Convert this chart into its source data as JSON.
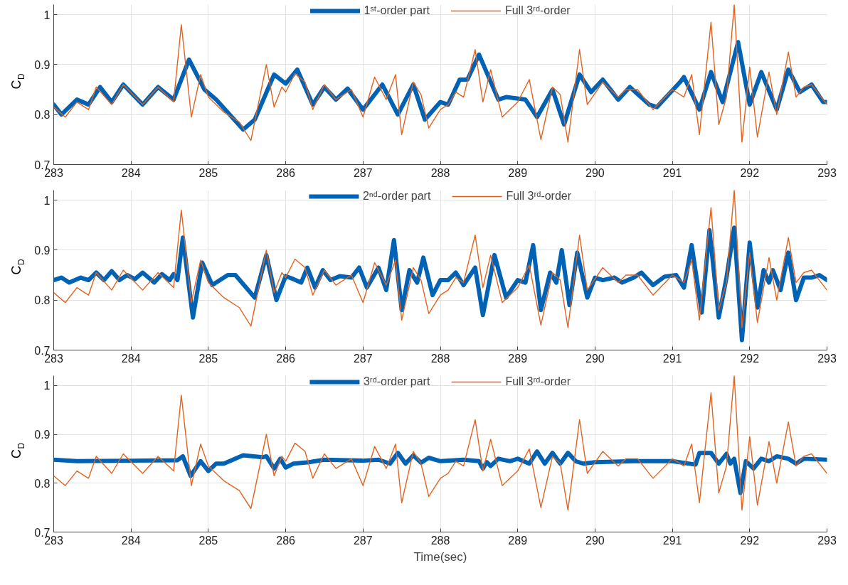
{
  "chart_data": [
    {
      "type": "line",
      "ylabel": "C$_{D}$",
      "xlim": [
        283,
        293
      ],
      "ylim": [
        0.7,
        1.02
      ],
      "xticks": [
        283,
        284,
        285,
        286,
        287,
        288,
        289,
        290,
        291,
        292,
        293
      ],
      "yticks": [
        0.7,
        0.8,
        0.9,
        1
      ],
      "grid": true,
      "legend": "top",
      "series": [
        {
          "name": "1ˢᵗ-order part",
          "color": "#0062b4",
          "x": [
            283.0,
            283.1,
            283.3,
            283.45,
            283.6,
            283.75,
            283.9,
            284.15,
            284.35,
            284.55,
            284.75,
            284.95,
            285.1,
            285.45,
            285.6,
            285.85,
            286.0,
            286.15,
            286.35,
            286.5,
            286.65,
            286.8,
            287.0,
            287.25,
            287.45,
            287.65,
            287.8,
            288.0,
            288.1,
            288.25,
            288.35,
            288.5,
            288.75,
            288.85,
            289.1,
            289.25,
            289.45,
            289.6,
            289.8,
            289.95,
            290.1,
            290.3,
            290.45,
            290.7,
            290.8,
            291.1,
            291.15,
            291.35,
            291.5,
            291.65,
            291.85,
            292.0,
            292.15,
            292.35,
            292.5,
            292.65,
            292.8,
            292.95,
            293.0
          ],
          "values": [
            0.82,
            0.8,
            0.83,
            0.82,
            0.855,
            0.825,
            0.86,
            0.82,
            0.855,
            0.83,
            0.91,
            0.85,
            0.83,
            0.77,
            0.79,
            0.88,
            0.862,
            0.89,
            0.82,
            0.855,
            0.83,
            0.852,
            0.81,
            0.86,
            0.8,
            0.86,
            0.79,
            0.825,
            0.82,
            0.87,
            0.87,
            0.92,
            0.83,
            0.835,
            0.83,
            0.795,
            0.85,
            0.78,
            0.88,
            0.845,
            0.87,
            0.83,
            0.855,
            0.82,
            0.815,
            0.865,
            0.875,
            0.81,
            0.885,
            0.825,
            0.945,
            0.82,
            0.885,
            0.81,
            0.89,
            0.845,
            0.86,
            0.825,
            0.825
          ]
        },
        {
          "name": "Full 3ʳᵈ-order",
          "color": "#e2621f",
          "x": [
            283.0,
            283.15,
            283.3,
            283.45,
            283.55,
            283.75,
            283.9,
            284.15,
            284.35,
            284.55,
            284.65,
            284.78,
            284.9,
            285.0,
            285.2,
            285.4,
            285.55,
            285.75,
            285.85,
            285.95,
            286.0,
            286.12,
            286.25,
            286.35,
            286.5,
            286.65,
            286.85,
            287.0,
            287.15,
            287.3,
            287.42,
            287.5,
            287.65,
            287.75,
            287.85,
            288.0,
            288.1,
            288.2,
            288.3,
            288.45,
            288.55,
            288.65,
            288.8,
            289.0,
            289.15,
            289.3,
            289.45,
            289.55,
            289.65,
            289.8,
            289.9,
            290.1,
            290.3,
            290.4,
            290.55,
            290.75,
            291.0,
            291.15,
            291.25,
            291.35,
            291.5,
            291.6,
            291.7,
            291.8,
            291.9,
            292.0,
            292.1,
            292.25,
            292.35,
            292.5,
            292.6,
            292.7,
            292.8,
            292.9,
            293.0
          ],
          "values": [
            0.815,
            0.795,
            0.825,
            0.81,
            0.855,
            0.82,
            0.86,
            0.82,
            0.855,
            0.825,
            0.98,
            0.795,
            0.88,
            0.835,
            0.805,
            0.785,
            0.748,
            0.9,
            0.815,
            0.855,
            0.845,
            0.882,
            0.865,
            0.81,
            0.86,
            0.83,
            0.85,
            0.795,
            0.875,
            0.83,
            0.88,
            0.76,
            0.865,
            0.84,
            0.773,
            0.81,
            0.82,
            0.845,
            0.835,
            0.93,
            0.825,
            0.89,
            0.795,
            0.825,
            0.87,
            0.75,
            0.855,
            0.84,
            0.745,
            0.93,
            0.82,
            0.865,
            0.835,
            0.85,
            0.85,
            0.81,
            0.85,
            0.835,
            0.88,
            0.76,
            0.985,
            0.78,
            0.835,
            1.02,
            0.745,
            0.895,
            0.755,
            0.885,
            0.8,
            0.925,
            0.835,
            0.855,
            0.86,
            0.84,
            0.82
          ]
        }
      ]
    },
    {
      "type": "line",
      "ylabel": "C$_{D}$",
      "xlim": [
        283,
        293
      ],
      "ylim": [
        0.7,
        1.02
      ],
      "xticks": [
        283,
        284,
        285,
        286,
        287,
        288,
        289,
        290,
        291,
        292,
        293
      ],
      "yticks": [
        0.7,
        0.8,
        0.9,
        1
      ],
      "grid": true,
      "legend": "top",
      "series": [
        {
          "name": "2ⁿᵈ-order part",
          "color": "#0062b4",
          "x": [
            283.0,
            283.1,
            283.2,
            283.35,
            283.45,
            283.55,
            283.65,
            283.75,
            283.85,
            283.95,
            284.05,
            284.15,
            284.3,
            284.4,
            284.5,
            284.55,
            284.6,
            284.67,
            284.8,
            284.92,
            285.05,
            285.25,
            285.35,
            285.6,
            285.75,
            285.88,
            286.0,
            286.1,
            286.2,
            286.28,
            286.38,
            286.48,
            286.58,
            286.7,
            286.85,
            286.95,
            287.05,
            287.2,
            287.3,
            287.4,
            287.5,
            287.6,
            287.7,
            287.78,
            287.9,
            288.0,
            288.1,
            288.2,
            288.3,
            288.45,
            288.55,
            288.7,
            288.85,
            289.0,
            289.1,
            289.2,
            289.3,
            289.42,
            289.5,
            289.57,
            289.67,
            289.77,
            289.9,
            290.0,
            290.1,
            290.25,
            290.35,
            290.5,
            290.6,
            290.75,
            290.9,
            291.05,
            291.15,
            291.25,
            291.38,
            291.48,
            291.6,
            291.7,
            291.8,
            291.9,
            292.0,
            292.1,
            292.18,
            292.25,
            292.3,
            292.4,
            292.5,
            292.6,
            292.7,
            292.8,
            292.9,
            293.0
          ],
          "values": [
            0.84,
            0.845,
            0.835,
            0.845,
            0.84,
            0.855,
            0.84,
            0.858,
            0.84,
            0.85,
            0.842,
            0.855,
            0.835,
            0.852,
            0.84,
            0.852,
            0.84,
            0.925,
            0.765,
            0.875,
            0.83,
            0.85,
            0.85,
            0.805,
            0.89,
            0.8,
            0.848,
            0.842,
            0.835,
            0.865,
            0.825,
            0.86,
            0.84,
            0.848,
            0.845,
            0.865,
            0.825,
            0.865,
            0.82,
            0.92,
            0.78,
            0.86,
            0.835,
            0.885,
            0.81,
            0.84,
            0.84,
            0.855,
            0.83,
            0.865,
            0.77,
            0.89,
            0.805,
            0.84,
            0.835,
            0.91,
            0.78,
            0.855,
            0.835,
            0.9,
            0.79,
            0.895,
            0.805,
            0.845,
            0.84,
            0.845,
            0.835,
            0.845,
            0.855,
            0.83,
            0.847,
            0.85,
            0.825,
            0.91,
            0.775,
            0.94,
            0.765,
            0.845,
            0.945,
            0.72,
            0.915,
            0.785,
            0.86,
            0.835,
            0.86,
            0.82,
            0.895,
            0.8,
            0.845,
            0.845,
            0.85,
            0.84
          ]
        },
        {
          "name": "Full 3ʳᵈ-order",
          "color": "#e2621f",
          "x": [
            283.0,
            283.15,
            283.3,
            283.45,
            283.55,
            283.75,
            283.9,
            284.15,
            284.35,
            284.55,
            284.65,
            284.78,
            284.9,
            285.0,
            285.2,
            285.4,
            285.55,
            285.75,
            285.85,
            285.95,
            286.0,
            286.12,
            286.25,
            286.35,
            286.5,
            286.65,
            286.85,
            287.0,
            287.15,
            287.3,
            287.42,
            287.5,
            287.65,
            287.75,
            287.85,
            288.0,
            288.1,
            288.2,
            288.3,
            288.45,
            288.55,
            288.65,
            288.8,
            289.0,
            289.15,
            289.3,
            289.45,
            289.55,
            289.65,
            289.8,
            289.9,
            290.1,
            290.3,
            290.4,
            290.55,
            290.75,
            291.0,
            291.15,
            291.25,
            291.35,
            291.5,
            291.6,
            291.7,
            291.8,
            291.9,
            292.0,
            292.1,
            292.25,
            292.35,
            292.5,
            292.6,
            292.7,
            292.8,
            292.9,
            293.0
          ],
          "values": [
            0.815,
            0.795,
            0.825,
            0.81,
            0.855,
            0.82,
            0.86,
            0.82,
            0.855,
            0.825,
            0.98,
            0.795,
            0.88,
            0.835,
            0.805,
            0.785,
            0.748,
            0.9,
            0.815,
            0.855,
            0.845,
            0.882,
            0.865,
            0.81,
            0.86,
            0.83,
            0.85,
            0.795,
            0.875,
            0.83,
            0.88,
            0.76,
            0.865,
            0.84,
            0.773,
            0.81,
            0.82,
            0.845,
            0.835,
            0.93,
            0.825,
            0.89,
            0.795,
            0.825,
            0.87,
            0.75,
            0.855,
            0.84,
            0.745,
            0.93,
            0.82,
            0.865,
            0.835,
            0.85,
            0.85,
            0.81,
            0.85,
            0.835,
            0.88,
            0.76,
            0.985,
            0.78,
            0.835,
            1.02,
            0.745,
            0.895,
            0.755,
            0.885,
            0.8,
            0.925,
            0.835,
            0.855,
            0.86,
            0.84,
            0.82
          ]
        }
      ]
    },
    {
      "type": "line",
      "xlabel": "Time(sec)",
      "ylabel": "C$_{D}$",
      "xlim": [
        283,
        293
      ],
      "ylim": [
        0.7,
        1.02
      ],
      "xticks": [
        283,
        284,
        285,
        286,
        287,
        288,
        289,
        290,
        291,
        292,
        293
      ],
      "yticks": [
        0.7,
        0.8,
        0.9,
        1
      ],
      "grid": true,
      "legend": "top",
      "series": [
        {
          "name": "3ʳᵈ-order part",
          "color": "#0062b4",
          "x": [
            283.0,
            283.3,
            284.0,
            284.6,
            284.67,
            284.77,
            284.9,
            285.0,
            285.1,
            285.2,
            285.45,
            285.7,
            285.75,
            285.85,
            285.93,
            286.0,
            286.1,
            286.3,
            286.5,
            287.0,
            287.2,
            287.35,
            287.45,
            287.55,
            287.65,
            287.75,
            287.85,
            288.0,
            288.3,
            288.5,
            288.55,
            288.6,
            288.65,
            288.75,
            288.9,
            289.0,
            289.15,
            289.25,
            289.35,
            289.45,
            289.55,
            289.65,
            289.75,
            289.85,
            290.0,
            290.5,
            291.0,
            291.3,
            291.35,
            291.5,
            291.6,
            291.7,
            291.75,
            291.8,
            291.88,
            291.95,
            292.05,
            292.15,
            292.25,
            292.35,
            292.5,
            292.6,
            292.7,
            293.0
          ],
          "values": [
            0.848,
            0.845,
            0.846,
            0.847,
            0.855,
            0.815,
            0.845,
            0.825,
            0.84,
            0.84,
            0.857,
            0.853,
            0.855,
            0.83,
            0.85,
            0.832,
            0.84,
            0.843,
            0.848,
            0.846,
            0.848,
            0.84,
            0.862,
            0.84,
            0.857,
            0.842,
            0.852,
            0.845,
            0.848,
            0.845,
            0.83,
            0.843,
            0.835,
            0.85,
            0.845,
            0.85,
            0.84,
            0.865,
            0.84,
            0.862,
            0.84,
            0.862,
            0.845,
            0.84,
            0.843,
            0.845,
            0.845,
            0.838,
            0.862,
            0.862,
            0.84,
            0.86,
            0.84,
            0.85,
            0.78,
            0.845,
            0.83,
            0.85,
            0.845,
            0.855,
            0.85,
            0.84,
            0.85,
            0.848
          ]
        },
        {
          "name": "Full 3ʳᵈ-order",
          "color": "#e2621f",
          "x": [
            283.0,
            283.15,
            283.3,
            283.45,
            283.55,
            283.75,
            283.9,
            284.15,
            284.35,
            284.55,
            284.65,
            284.78,
            284.9,
            285.0,
            285.2,
            285.4,
            285.55,
            285.75,
            285.85,
            285.95,
            286.0,
            286.12,
            286.25,
            286.35,
            286.5,
            286.65,
            286.85,
            287.0,
            287.15,
            287.3,
            287.42,
            287.5,
            287.65,
            287.75,
            287.85,
            288.0,
            288.1,
            288.2,
            288.3,
            288.45,
            288.55,
            288.65,
            288.8,
            289.0,
            289.15,
            289.3,
            289.45,
            289.55,
            289.65,
            289.8,
            289.9,
            290.1,
            290.3,
            290.4,
            290.55,
            290.75,
            291.0,
            291.15,
            291.25,
            291.35,
            291.5,
            291.6,
            291.7,
            291.8,
            291.9,
            292.0,
            292.1,
            292.25,
            292.35,
            292.5,
            292.6,
            292.7,
            292.8,
            292.9,
            293.0
          ],
          "values": [
            0.815,
            0.795,
            0.825,
            0.81,
            0.855,
            0.82,
            0.86,
            0.82,
            0.855,
            0.825,
            0.98,
            0.795,
            0.88,
            0.835,
            0.805,
            0.785,
            0.748,
            0.9,
            0.815,
            0.855,
            0.845,
            0.882,
            0.865,
            0.81,
            0.86,
            0.83,
            0.85,
            0.795,
            0.875,
            0.83,
            0.88,
            0.76,
            0.865,
            0.84,
            0.773,
            0.81,
            0.82,
            0.845,
            0.835,
            0.93,
            0.825,
            0.89,
            0.795,
            0.825,
            0.87,
            0.75,
            0.855,
            0.84,
            0.745,
            0.93,
            0.82,
            0.865,
            0.835,
            0.85,
            0.85,
            0.81,
            0.85,
            0.835,
            0.88,
            0.76,
            0.985,
            0.78,
            0.835,
            1.02,
            0.745,
            0.895,
            0.755,
            0.885,
            0.8,
            0.925,
            0.835,
            0.855,
            0.86,
            0.84,
            0.82
          ]
        }
      ]
    }
  ]
}
